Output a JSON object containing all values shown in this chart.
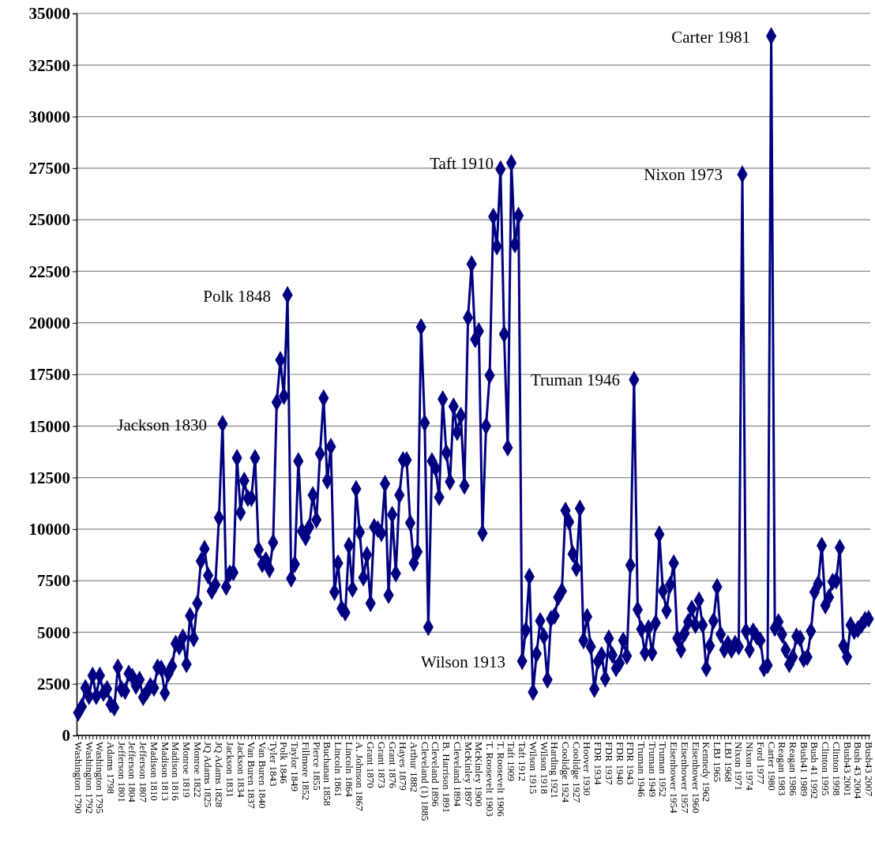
{
  "chart_data": {
    "type": "line",
    "categories": [
      "Washington 1790",
      null,
      null,
      "Washington 1792",
      null,
      null,
      "Washington 1795",
      null,
      null,
      "Adams 1798",
      null,
      null,
      "Jefferson 1801",
      null,
      null,
      "Jefferson 1804",
      null,
      null,
      "Jefferson 1807",
      null,
      null,
      "Madison 1810",
      null,
      null,
      "Madison 1813",
      null,
      null,
      "Madison 1816",
      null,
      null,
      "Monroe 1819",
      null,
      null,
      "Monroe 1822",
      null,
      null,
      "JQ Adams 1825",
      null,
      null,
      "JQ Adams 1828",
      null,
      null,
      "Jackson 1831",
      null,
      null,
      "Jackson 1834",
      null,
      null,
      "Van Buren 1837",
      null,
      null,
      "Van Buren 1840",
      null,
      null,
      "Tyler 1843",
      null,
      null,
      "Polk 1846",
      null,
      null,
      "Taylor 1849",
      null,
      null,
      "Fillmore 1852",
      null,
      null,
      "Pierce 1855",
      null,
      null,
      "Buchanan 1858",
      null,
      null,
      "Lincoln 1861",
      null,
      null,
      "Lincoln 1864",
      null,
      null,
      "A. Johnson 1867",
      null,
      null,
      "Grant 1870",
      null,
      null,
      "Grant 1873",
      null,
      null,
      "Grant 1876",
      null,
      null,
      "Hayes 1879",
      null,
      null,
      "Arthur 1882",
      null,
      null,
      "Cleveland (1) 1885",
      null,
      null,
      "Cleveland 1896",
      null,
      null,
      "B. Harrison 1891",
      null,
      null,
      "Cleveland 1894",
      null,
      null,
      "McKinley 1897",
      null,
      null,
      "McKinley 1900",
      null,
      null,
      "T. Roosevelt 1903",
      null,
      null,
      "T. Roosevelt 1906",
      null,
      null,
      "Taft 1909",
      null,
      null,
      "Taft 1912",
      null,
      null,
      "Wilson 1915",
      null,
      null,
      "Wilson 1918",
      null,
      null,
      "Harding 1921",
      null,
      null,
      "Coolidge 1924",
      null,
      null,
      "Coolidge 1927",
      null,
      null,
      "Hoover 1930",
      null,
      null,
      "FDR 1934",
      null,
      null,
      "FDR 1937",
      null,
      null,
      "FDR 1940",
      null,
      null,
      "FDR 1943",
      null,
      null,
      "Truman 1946",
      null,
      null,
      "Truman 1949",
      null,
      null,
      "Truman 1952",
      null,
      null,
      "Eisenhower 1954",
      null,
      null,
      "Eisenhower 1957",
      null,
      null,
      "Eisenhower 1960",
      null,
      null,
      "Kennedy 1962",
      null,
      null,
      "LBJ 1965",
      null,
      null,
      "LBJ 1968",
      null,
      null,
      "Nixon 1971",
      null,
      null,
      "Nixon 1974",
      null,
      null,
      "Ford 1977",
      null,
      null,
      "Carter 1980",
      null,
      null,
      "Reagan 1983",
      null,
      null,
      "Reagan 1986",
      null,
      null,
      "Bush41 1989",
      null,
      null,
      "Bush 41 1992",
      null,
      null,
      "Clinton 1995",
      null,
      null,
      "Clinton 1998",
      null,
      null,
      "Bush43 2001",
      null,
      null,
      "Bush 43 2004",
      null,
      null,
      "Bush43 2007"
    ],
    "series": [
      {
        "color": "#000080",
        "values": [
          1100,
          1400,
          2300,
          1900,
          2900,
          1900,
          2900,
          2050,
          2250,
          1500,
          1350,
          3300,
          2250,
          2150,
          3000,
          2850,
          2400,
          2700,
          1850,
          2100,
          2400,
          2300,
          3300,
          3250,
          2050,
          3000,
          3350,
          4450,
          4300,
          4750,
          3450,
          5800,
          4700,
          6400,
          8450,
          9050,
          7750,
          7000,
          7300,
          10550,
          15100,
          7200,
          7850,
          7900,
          13450,
          10800,
          12350,
          11500,
          11500,
          13450,
          9000,
          8300,
          8500,
          8050,
          9350,
          16150,
          18200,
          16450,
          21350,
          7600,
          8300,
          13300,
          9900,
          9600,
          10100,
          11650,
          10450,
          13650,
          16350,
          12350,
          14000,
          6950,
          8350,
          6150,
          5950,
          9200,
          7100,
          11950,
          9850,
          7650,
          8750,
          6400,
          10100,
          10000,
          9800,
          12200,
          6800,
          10700,
          7850,
          11650,
          13350,
          13350,
          10300,
          8350,
          8900,
          19800,
          15150,
          5250,
          13300,
          12950,
          11550,
          16300,
          13700,
          12300,
          15950,
          14700,
          15500,
          12100,
          20250,
          22850,
          19200,
          19600,
          9800,
          15000,
          17450,
          25150,
          23700,
          27450,
          19450,
          13950,
          27750,
          23800,
          25200,
          3600,
          5100,
          7700,
          2100,
          3950,
          5550,
          4800,
          2700,
          5650,
          5800,
          6700,
          7000,
          10900,
          10350,
          8800,
          8100,
          11000,
          4600,
          5750,
          4300,
          2250,
          3600,
          3900,
          2750,
          4700,
          3900,
          3250,
          3500,
          4600,
          3850,
          8250,
          17250,
          6100,
          5150,
          4000,
          5200,
          4000,
          5450,
          9750,
          7000,
          6050,
          7300,
          8350,
          4700,
          4150,
          4950,
          5500,
          6150,
          5350,
          6550,
          5350,
          3250,
          4350,
          5550,
          7200,
          4900,
          4150,
          4450,
          4150,
          4450,
          4300,
          27200,
          5050,
          4150,
          5050,
          4800,
          4600,
          3250,
          3400,
          33900,
          5200,
          5500,
          4900,
          4150,
          3450,
          3800,
          4800,
          4700,
          3700,
          3800,
          5050,
          6950,
          7350,
          9200,
          6300,
          6700,
          7450,
          7500,
          9100,
          4350,
          3800,
          5350,
          5050,
          5150,
          5350,
          5600,
          5650
        ]
      }
    ],
    "ylim": [
      0,
      35000
    ],
    "yticks": [
      0,
      2500,
      5000,
      7500,
      10000,
      12500,
      15000,
      17500,
      20000,
      22500,
      25000,
      27500,
      30000,
      32500,
      35000
    ],
    "grid": "y",
    "marker": "diamond",
    "line_style": "solid",
    "annotations": [
      "Jackson 1830",
      "Polk 1848",
      "Taft 1910",
      "Wilson 1913",
      "Truman 1946",
      "Nixon 1973",
      "Carter 1981"
    ]
  }
}
